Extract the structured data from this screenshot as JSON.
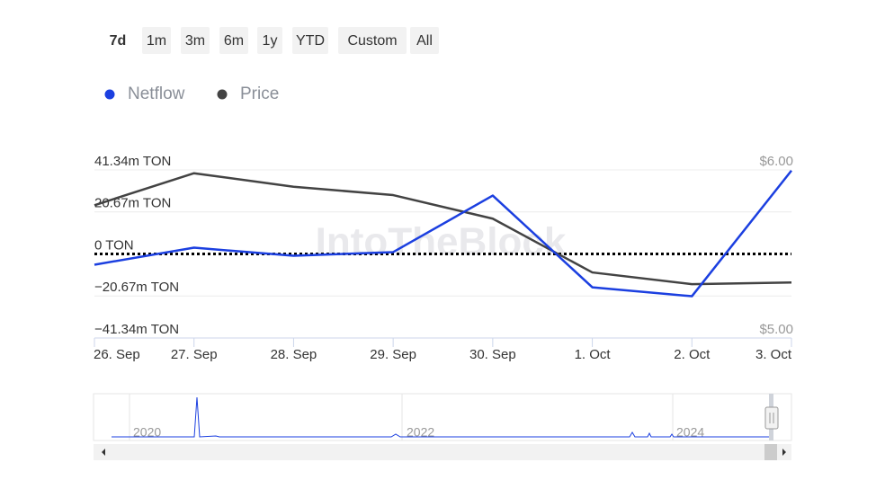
{
  "range_buttons": [
    "7d",
    "1m",
    "3m",
    "6m",
    "1y",
    "YTD",
    "Custom",
    "All"
  ],
  "watermark": "IntoTheBlock",
  "navigator_labels": [
    "2020",
    "2022",
    "2024"
  ],
  "chart_data": {
    "type": "line",
    "categories": [
      "26. Sep",
      "27. Sep",
      "28. Sep",
      "29. Sep",
      "30. Sep",
      "1. Oct",
      "2. Oct",
      "3. Oct"
    ],
    "series": [
      {
        "name": "Netflow",
        "color": "#1b3fe0",
        "values": [
          -5.3,
          3.1,
          -0.9,
          0.9,
          28.7,
          -16.4,
          -20.8,
          41.0
        ]
      },
      {
        "name": "Price",
        "color": "#434343",
        "axis": "y2",
        "values": [
          5.79,
          5.98,
          5.9,
          5.85,
          5.71,
          5.39,
          5.32,
          5.33
        ]
      }
    ],
    "ylim": [
      -41.34,
      41.34
    ],
    "yticks": [
      {
        "value": 41.34,
        "label": "41.34m TON"
      },
      {
        "value": 20.67,
        "label": "20.67m TON"
      },
      {
        "value": 0,
        "label": "0 TON"
      },
      {
        "value": -20.67,
        "label": "−20.67m TON"
      },
      {
        "value": -41.34,
        "label": "−41.34m TON"
      }
    ],
    "y2lim": [
      5,
      6
    ],
    "y2ticks": [
      {
        "value": 6,
        "label": "$6.00"
      },
      {
        "value": 5,
        "label": "$5.00"
      }
    ],
    "grid": true,
    "legend": "top-left"
  }
}
